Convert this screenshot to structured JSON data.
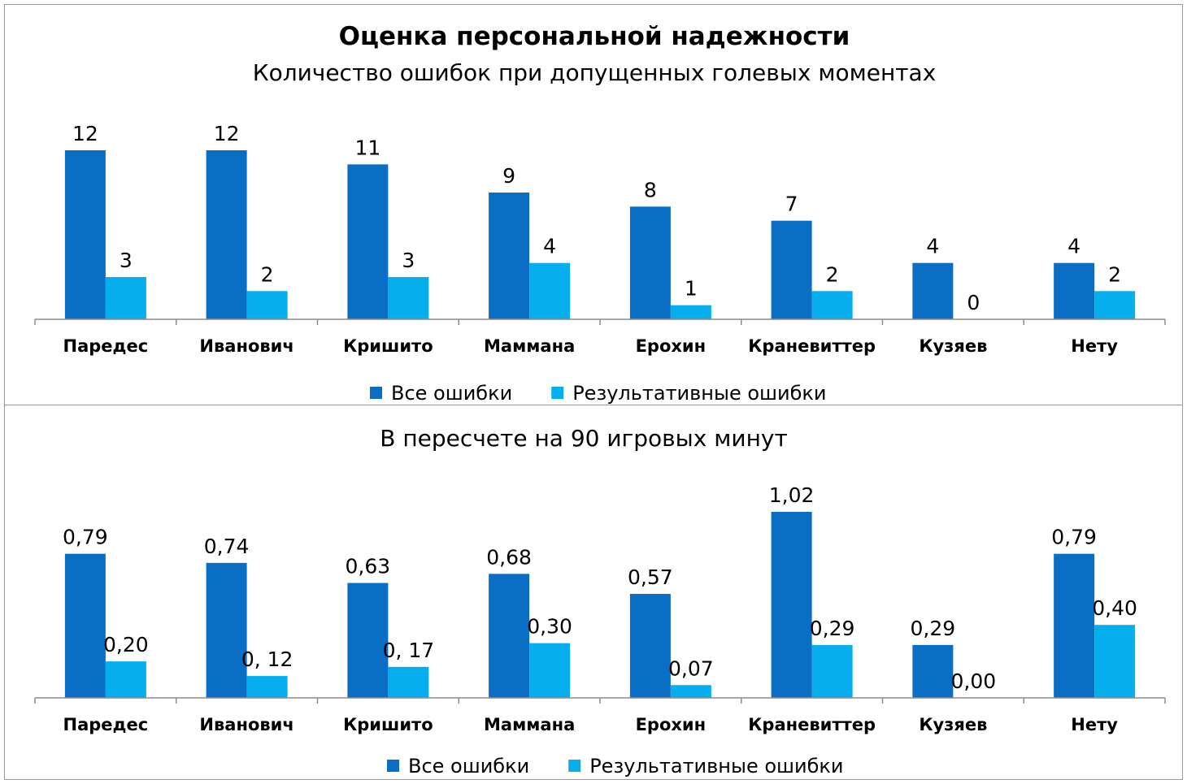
{
  "colors": {
    "all_errors": "#0A6EC4",
    "result_errors": "#06AEEE",
    "axis": "#8c8c8c"
  },
  "chart_data": [
    {
      "type": "bar",
      "title": "Оценка персональной надежности",
      "subtitle": "Количество ошибок при допущенных голевых моментах",
      "categories": [
        "Паредес",
        "Иванович",
        "Кришито",
        "Маммана",
        "Ерохин",
        "Краневиттер",
        "Кузяев",
        "Нету"
      ],
      "series": [
        {
          "name": "Все ошибки",
          "values": [
            12,
            12,
            11,
            9,
            8,
            7,
            4,
            4
          ],
          "labels": [
            "12",
            "12",
            "11",
            "9",
            "8",
            "7",
            "4",
            "4"
          ]
        },
        {
          "name": "Результативные ошибки",
          "values": [
            3,
            2,
            3,
            4,
            1,
            2,
            0,
            2
          ],
          "labels": [
            "3",
            "2",
            "3",
            "4",
            "1",
            "2",
            "0",
            "2"
          ]
        }
      ],
      "ylim": [
        0,
        12
      ],
      "grid": false,
      "legend": "bottom"
    },
    {
      "type": "bar",
      "title": "",
      "subtitle": "В пересчете на 90 игровых минут",
      "categories": [
        "Паредес",
        "Иванович",
        "Кришито",
        "Маммана",
        "Ерохин",
        "Краневиттер",
        "Кузяев",
        "Нету"
      ],
      "series": [
        {
          "name": "Все ошибки",
          "values": [
            0.79,
            0.74,
            0.63,
            0.68,
            0.57,
            1.02,
            0.29,
            0.79
          ],
          "labels": [
            "0,79",
            "0,74",
            "0,63",
            "0,68",
            "0,57",
            "1,02",
            "0,29",
            "0,79"
          ]
        },
        {
          "name": "Результативные ошибки",
          "values": [
            0.2,
            0.12,
            0.17,
            0.3,
            0.07,
            0.29,
            0.0,
            0.4
          ],
          "labels": [
            "0,20",
            "0, 12",
            "0, 17",
            "0,30",
            "0,07",
            "0,29",
            "0,00",
            "0,40"
          ]
        }
      ],
      "ylim": [
        0,
        1.02
      ],
      "grid": false,
      "legend": "bottom"
    }
  ]
}
